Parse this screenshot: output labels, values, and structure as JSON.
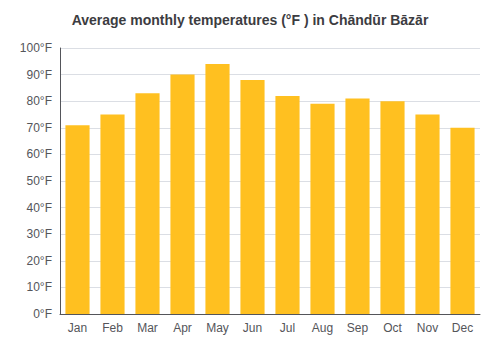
{
  "chart_data": {
    "type": "bar",
    "title": "Average monthly temperatures (°F ) in Chāndūr Bāzār",
    "categories": [
      "Jan",
      "Feb",
      "Mar",
      "Apr",
      "May",
      "Jun",
      "Jul",
      "Aug",
      "Sep",
      "Oct",
      "Nov",
      "Dec"
    ],
    "values": [
      71,
      75,
      83,
      90,
      94,
      88,
      82,
      79,
      81,
      80,
      75,
      70
    ],
    "color": "#FFC020",
    "ylim": [
      0,
      100
    ],
    "yticks": [
      {
        "value": 0,
        "label": "0°F"
      },
      {
        "value": 10,
        "label": "10°F"
      },
      {
        "value": 20,
        "label": "20°F"
      },
      {
        "value": 30,
        "label": "30°F"
      },
      {
        "value": 40,
        "label": "40°F"
      },
      {
        "value": 50,
        "label": "50°F"
      },
      {
        "value": 60,
        "label": "60°F"
      },
      {
        "value": 70,
        "label": "70°F"
      },
      {
        "value": 80,
        "label": "80°F"
      },
      {
        "value": 90,
        "label": "90°F"
      },
      {
        "value": 100,
        "label": "100°F"
      }
    ],
    "grid": true
  }
}
